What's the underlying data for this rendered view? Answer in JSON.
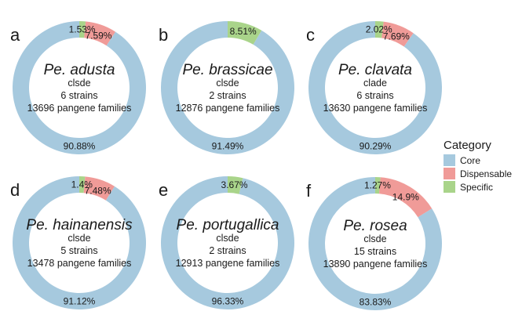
{
  "chart_data": [
    {
      "type": "pie",
      "panel": "a",
      "species": "Pe. adusta",
      "clade": "clsde",
      "strains": "6 strains",
      "families": "13696 pangene families",
      "slices": [
        {
          "category": "Specific",
          "value": 1.53,
          "label": "1.53%"
        },
        {
          "category": "Dispensable",
          "value": 7.59,
          "label": "7.59%"
        },
        {
          "category": "Core",
          "value": 90.88,
          "label": "90.88%"
        }
      ]
    },
    {
      "type": "pie",
      "panel": "b",
      "species": "Pe. brassicae",
      "clade": "clsde",
      "strains": "2 strains",
      "families": "12876 pangene families",
      "slices": [
        {
          "category": "Specific",
          "value": 8.51,
          "label": "8.51%"
        },
        {
          "category": "Core",
          "value": 91.49,
          "label": "91.49%"
        }
      ]
    },
    {
      "type": "pie",
      "panel": "c",
      "species": "Pe. clavata",
      "clade": "clade",
      "strains": "6 strains",
      "families": "13630 pangene families",
      "slices": [
        {
          "category": "Specific",
          "value": 2.02,
          "label": "2.02%"
        },
        {
          "category": "Dispensable",
          "value": 7.69,
          "label": "7.69%"
        },
        {
          "category": "Core",
          "value": 90.29,
          "label": "90.29%"
        }
      ]
    },
    {
      "type": "pie",
      "panel": "d",
      "species": "Pe. hainanensis",
      "clade": "clsde",
      "strains": "5 strains",
      "families": "13478 pangene families",
      "slices": [
        {
          "category": "Specific",
          "value": 1.4,
          "label": "1.4%"
        },
        {
          "category": "Dispensable",
          "value": 7.48,
          "label": "7.48%"
        },
        {
          "category": "Core",
          "value": 91.12,
          "label": "91.12%"
        }
      ]
    },
    {
      "type": "pie",
      "panel": "e",
      "species": "Pe. portugallica",
      "clade": "clsde",
      "strains": "2 strains",
      "families": "12913 pangene families",
      "slices": [
        {
          "category": "Specific",
          "value": 3.67,
          "label": "3.67%"
        },
        {
          "category": "Core",
          "value": 96.33,
          "label": "96.33%"
        }
      ]
    },
    {
      "type": "pie",
      "panel": "f",
      "species": "Pe. rosea",
      "clade": "clsde",
      "strains": "15 strains",
      "families": "13890 pangene families",
      "slices": [
        {
          "category": "Specific",
          "value": 1.27,
          "label": "1.27%"
        },
        {
          "category": "Dispensable",
          "value": 14.9,
          "label": "14.9%"
        },
        {
          "category": "Core",
          "value": 83.83,
          "label": "83.83%"
        }
      ]
    }
  ],
  "legend": {
    "title": "Category",
    "placement": "right",
    "items": [
      {
        "label": "Core",
        "color": "#a6c9de"
      },
      {
        "label": "Dispensable",
        "color": "#f09b98"
      },
      {
        "label": "Specific",
        "color": "#a9d48a"
      }
    ]
  }
}
